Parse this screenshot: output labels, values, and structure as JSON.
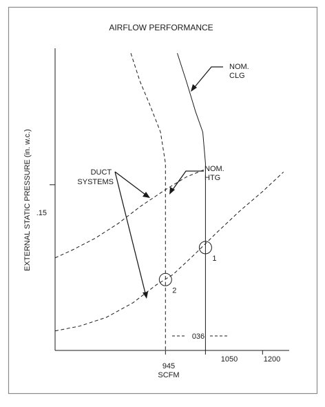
{
  "colors": {
    "ink": "#1a1a1a",
    "border": "#8a8a8a",
    "background": "#ffffff"
  },
  "chart_data": {
    "type": "line",
    "title": "AIRFLOW PERFORMANCE",
    "xlabel": "SCFM",
    "ylabel": "EXTERNAL STATIC PRESSURE (in. w.c.)",
    "x_tick_labels": [
      {
        "value": 945,
        "label": "945"
      },
      {
        "value": 1050,
        "label": "1050"
      },
      {
        "value": 1200,
        "label": "1200"
      }
    ],
    "y_tick_labels": [
      {
        "value": 0.15,
        "label": ".15"
      }
    ],
    "series": [
      {
        "kind": "fan-curve",
        "name": "NOM. CLG",
        "style": "solid",
        "points": [
          [
            976,
            0.285
          ],
          [
            1000,
            0.256
          ],
          [
            1024,
            0.225
          ],
          [
            1043,
            0.204
          ],
          [
            1050,
            0.172
          ],
          [
            1050,
            -0.02
          ]
        ]
      },
      {
        "kind": "fan-curve",
        "name": "NOM. HTG",
        "style": "dashed",
        "points": [
          [
            854,
            0.285
          ],
          [
            878,
            0.256
          ],
          [
            905,
            0.231
          ],
          [
            932,
            0.204
          ],
          [
            945,
            0.172
          ],
          [
            945,
            -0.02
          ]
        ]
      },
      {
        "kind": "duct-system",
        "style": "dashed",
        "points": [
          [
            655,
            0.075
          ],
          [
            700,
            0.083
          ],
          [
            760,
            0.095
          ],
          [
            820,
            0.11
          ],
          [
            880,
            0.128
          ],
          [
            945,
            0.145
          ],
          [
            1000,
            0.158
          ],
          [
            1050,
            0.166
          ]
        ]
      },
      {
        "kind": "duct-system",
        "style": "dashed",
        "points": [
          [
            655,
            0.0
          ],
          [
            720,
            0.005
          ],
          [
            790,
            0.014
          ],
          [
            860,
            0.029
          ],
          [
            920,
            0.047
          ],
          [
            965,
            0.058
          ],
          [
            1020,
            0.078
          ],
          [
            1080,
            0.101
          ],
          [
            1140,
            0.123
          ],
          [
            1200,
            0.143
          ],
          [
            1255,
            0.163
          ]
        ]
      }
    ],
    "operating_points": [
      {
        "label": "1",
        "x": 1050,
        "y": 0.0855
      },
      {
        "label": "2",
        "x": 945,
        "y": 0.0527
      }
    ],
    "annotations": [
      {
        "id": "nom-clg",
        "lines": [
          "NOM.",
          "CLG"
        ]
      },
      {
        "id": "nom-htg",
        "lines": [
          "NOM.",
          "HTG"
        ]
      },
      {
        "id": "duct-systems",
        "lines": [
          "DUCT",
          "SYSTEMS"
        ]
      },
      {
        "id": "delta",
        "text": "036"
      }
    ],
    "xlim": [
      655,
      1270
    ],
    "ylim": [
      -0.02,
      0.29
    ],
    "grid": false
  }
}
